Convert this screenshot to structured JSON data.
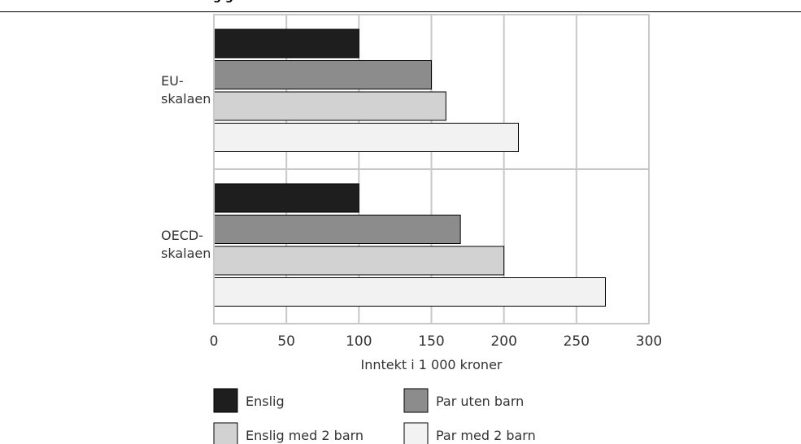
{
  "header": {
    "title_fragment": "g g"
  },
  "chart_data": {
    "type": "bar",
    "orientation": "horizontal",
    "categories": [
      "EU-\nskalaen",
      "OECD-\nskalaen"
    ],
    "category_lines": [
      [
        "EU-",
        "skalaen"
      ],
      [
        "OECD-",
        "skalaen"
      ]
    ],
    "series": [
      {
        "name": "Enslig",
        "values": [
          100,
          100
        ],
        "color": "#1e1e1e"
      },
      {
        "name": "Par uten barn",
        "values": [
          150,
          170
        ],
        "color": "#8c8c8c"
      },
      {
        "name": "Enslig med 2 barn",
        "values": [
          160,
          200
        ],
        "color": "#d2d2d2"
      },
      {
        "name": "Par med 2 barn",
        "values": [
          210,
          270
        ],
        "color": "#f2f2f2"
      }
    ],
    "xlabel": "Inntekt i 1 000 kroner",
    "ylabel": "",
    "xlim": [
      0,
      300
    ],
    "xticks": [
      0,
      50,
      100,
      150,
      200,
      250,
      300
    ],
    "grid": true,
    "legend_position": "bottom"
  }
}
